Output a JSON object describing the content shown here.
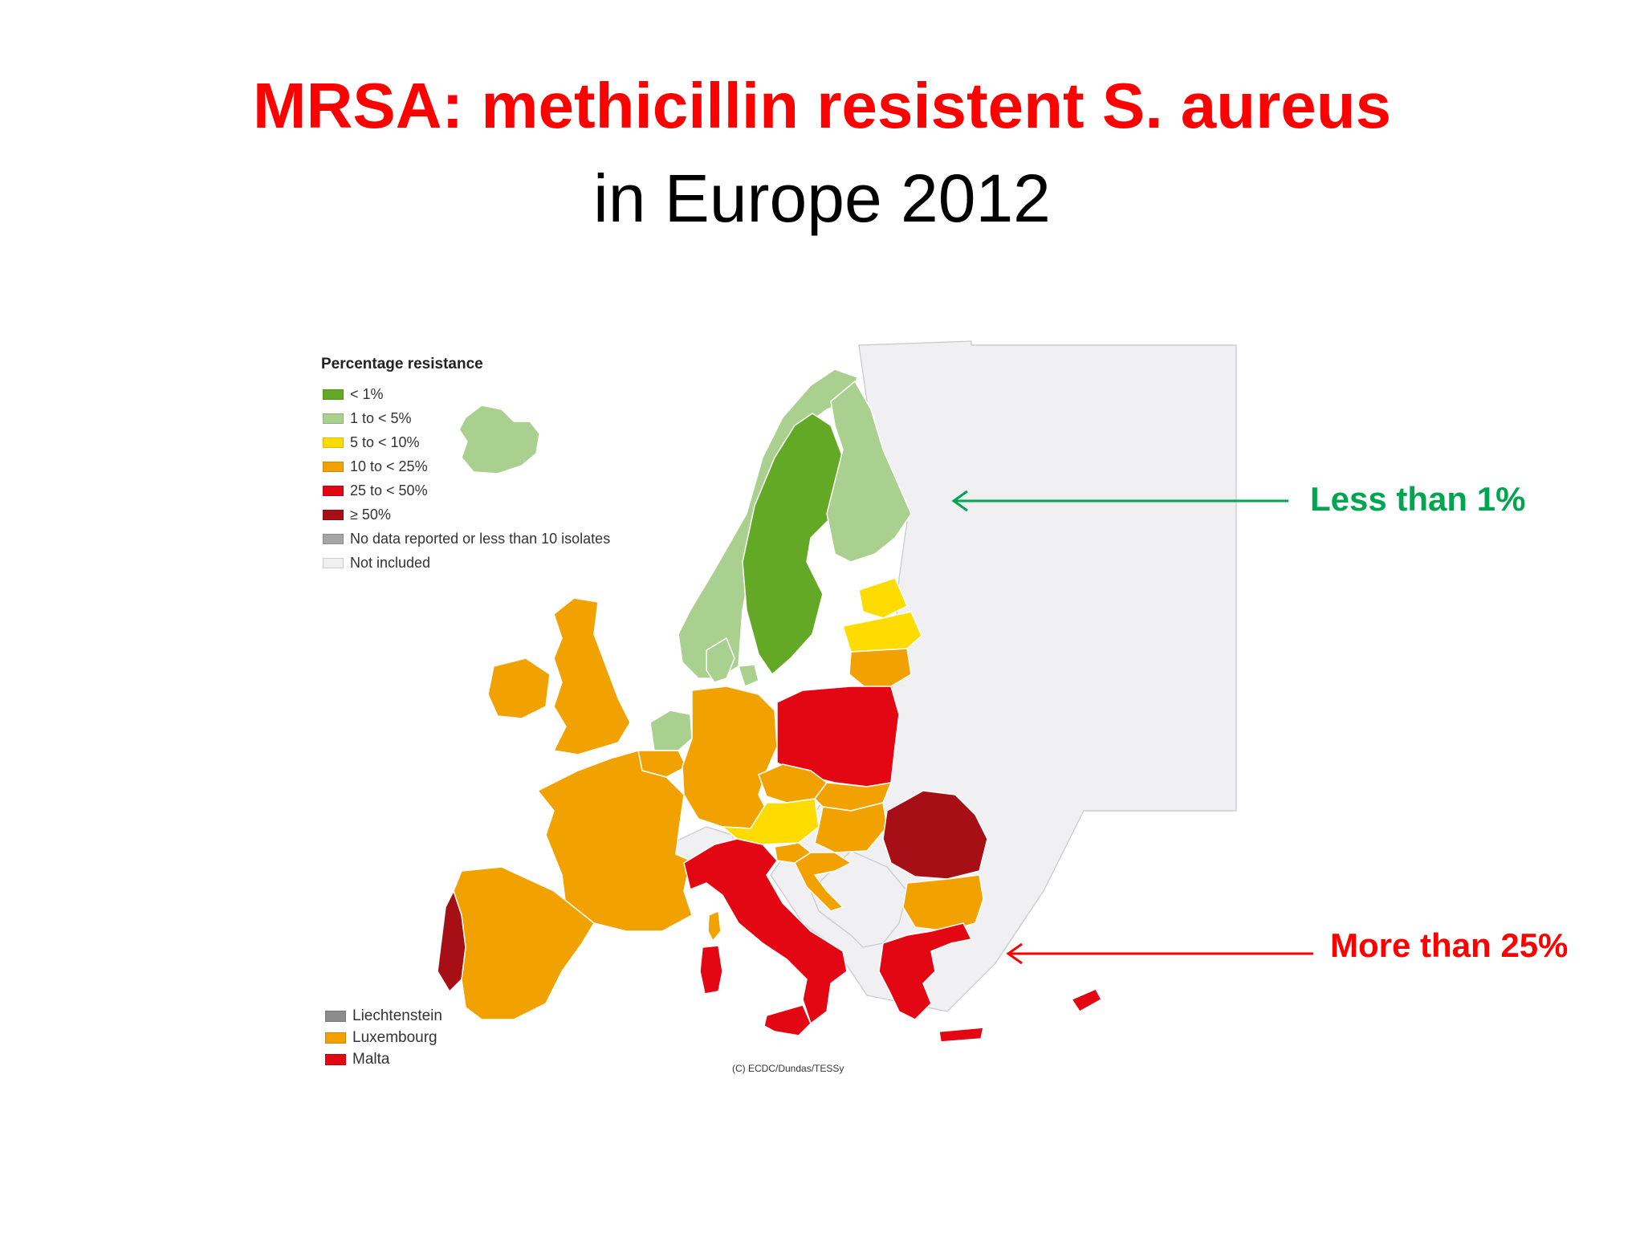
{
  "slide": {
    "title": "MRSA: methicillin resistent S. aureus",
    "subtitle": "in Europe 2012"
  },
  "legend": {
    "title": "Percentage resistance",
    "items": [
      {
        "label": "< 1%",
        "color": "#63a925"
      },
      {
        "label": "1 to < 5%",
        "color": "#a9d08e"
      },
      {
        "label": "5 to < 10%",
        "color": "#ffdc00"
      },
      {
        "label": "10 to < 25%",
        "color": "#f2a200"
      },
      {
        "label": "25 to < 50%",
        "color": "#e30613"
      },
      {
        "label": "≥ 50%",
        "color": "#a50f15"
      },
      {
        "label": "No data reported or less than 10 isolates",
        "color": "#a6a6a6"
      },
      {
        "label": "Not included",
        "color": "#f0f0f3"
      }
    ]
  },
  "small_countries": [
    {
      "label": "Liechtenstein",
      "color": "#8c8c8c"
    },
    {
      "label": "Luxembourg",
      "color": "#f2a200"
    },
    {
      "label": "Malta",
      "color": "#e30613"
    }
  ],
  "copyright": "(C) ECDC/Dundas/TESSy",
  "annotations": {
    "low": {
      "text": "Less than 1%",
      "color": "#00a550"
    },
    "high": {
      "text": "More than 25%",
      "color": "#ff0000"
    }
  },
  "map_colors": {
    "background": "#f0f0f3",
    "border": "#ffffff"
  },
  "countries": [
    {
      "name": "Iceland",
      "category": "1 to < 5%"
    },
    {
      "name": "Norway",
      "category": "1 to < 5%"
    },
    {
      "name": "Sweden",
      "category": "< 1%"
    },
    {
      "name": "Finland",
      "category": "1 to < 5%"
    },
    {
      "name": "Denmark",
      "category": "1 to < 5%"
    },
    {
      "name": "Netherlands",
      "category": "1 to < 5%"
    },
    {
      "name": "Estonia",
      "category": "5 to < 10%"
    },
    {
      "name": "Latvia",
      "category": "5 to < 10%"
    },
    {
      "name": "Lithuania",
      "category": "10 to < 25%"
    },
    {
      "name": "Ireland",
      "category": "10 to < 25%"
    },
    {
      "name": "United Kingdom",
      "category": "10 to < 25%"
    },
    {
      "name": "Belgium",
      "category": "10 to < 25%"
    },
    {
      "name": "Germany",
      "category": "10 to < 25%"
    },
    {
      "name": "France",
      "category": "10 to < 25%"
    },
    {
      "name": "Spain",
      "category": "10 to < 25%"
    },
    {
      "name": "Czech Republic",
      "category": "10 to < 25%"
    },
    {
      "name": "Slovakia",
      "category": "10 to < 25%"
    },
    {
      "name": "Hungary",
      "category": "10 to < 25%"
    },
    {
      "name": "Slovenia",
      "category": "10 to < 25%"
    },
    {
      "name": "Croatia",
      "category": "10 to < 25%"
    },
    {
      "name": "Bulgaria",
      "category": "10 to < 25%"
    },
    {
      "name": "Austria",
      "category": "5 to < 10%"
    },
    {
      "name": "Poland",
      "category": "25 to < 50%"
    },
    {
      "name": "Italy",
      "category": "25 to < 50%"
    },
    {
      "name": "Greece",
      "category": "25 to < 50%"
    },
    {
      "name": "Cyprus",
      "category": "25 to < 50%"
    },
    {
      "name": "Portugal",
      "category": "≥ 50%"
    },
    {
      "name": "Romania",
      "category": "≥ 50%"
    }
  ]
}
